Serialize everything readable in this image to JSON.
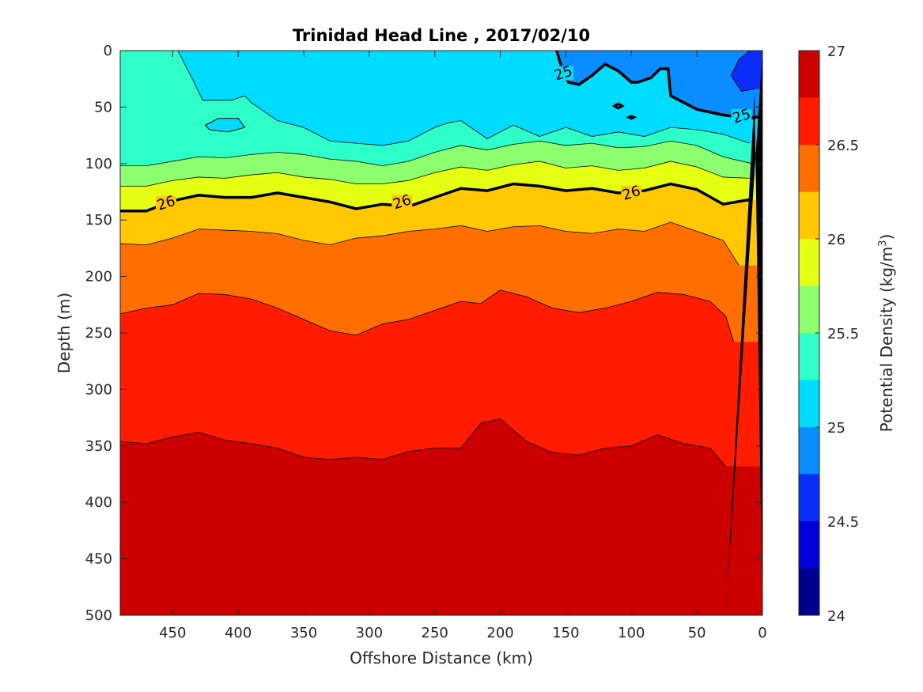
{
  "chart_data": {
    "type": "contour",
    "title": "Trinidad Head Line , 2017/02/10",
    "xlabel": "Offshore Distance (km)",
    "ylabel": "Depth (m)",
    "colorbar_label": "Potential Density (kg/m",
    "colorbar_label_superscript": "3",
    "colorbar_label_suffix": ")",
    "xlim": [
      490,
      0
    ],
    "ylim": [
      0,
      500
    ],
    "x_reversed": true,
    "y_reversed": true,
    "x_ticks": [
      450,
      400,
      350,
      300,
      250,
      200,
      150,
      100,
      50,
      0
    ],
    "y_ticks": [
      0,
      50,
      100,
      150,
      200,
      250,
      300,
      350,
      400,
      450,
      500
    ],
    "clim": [
      24,
      27
    ],
    "colorbar_ticks": [
      24,
      24.5,
      25,
      25.5,
      26,
      26.5,
      27
    ],
    "contour_levels": [
      24.25,
      24.5,
      24.75,
      25,
      25.25,
      25.5,
      25.75,
      26,
      26.25,
      26.5,
      26.75
    ],
    "level_colors": [
      "#00008f",
      "#0000d8",
      "#0c2cf8",
      "#0a8eff",
      "#00dcff",
      "#2effc8",
      "#8cff6e",
      "#e4ff12",
      "#ffc800",
      "#ff6e00",
      "#ff1c00",
      "#cc0000"
    ],
    "labeled_levels": [
      25,
      26
    ],
    "contour_labels": [
      {
        "level": 26,
        "x": 455,
        "y": 135
      },
      {
        "level": 26,
        "x": 275,
        "y": 134
      },
      {
        "level": 26,
        "x": 100,
        "y": 126
      },
      {
        "level": 25,
        "x": 152,
        "y": 20
      },
      {
        "level": 25,
        "x": 16,
        "y": 58
      }
    ],
    "contours": [
      {
        "level": 26.75,
        "x": [
          490,
          470,
          450,
          430,
          410,
          390,
          370,
          350,
          330,
          310,
          290,
          270,
          250,
          230,
          215,
          200,
          180,
          160,
          140,
          120,
          100,
          80,
          60,
          40,
          28
        ],
        "y": [
          346,
          348,
          342,
          338,
          345,
          348,
          352,
          360,
          362,
          360,
          362,
          355,
          352,
          352,
          330,
          326,
          346,
          356,
          358,
          352,
          350,
          340,
          348,
          352,
          368
        ]
      },
      {
        "level": 26.5,
        "x": [
          490,
          470,
          450,
          430,
          410,
          390,
          370,
          350,
          330,
          310,
          290,
          270,
          250,
          230,
          215,
          200,
          180,
          160,
          140,
          120,
          100,
          80,
          60,
          40,
          28,
          22
        ],
        "y": [
          233,
          228,
          225,
          215,
          216,
          220,
          228,
          238,
          248,
          252,
          242,
          238,
          230,
          222,
          224,
          212,
          218,
          228,
          232,
          228,
          222,
          214,
          216,
          222,
          235,
          258
        ]
      },
      {
        "level": 26.25,
        "x": [
          490,
          470,
          450,
          430,
          410,
          390,
          370,
          350,
          330,
          310,
          290,
          270,
          250,
          230,
          210,
          190,
          170,
          150,
          130,
          110,
          90,
          70,
          50,
          30,
          18
        ],
        "y": [
          171,
          172,
          166,
          158,
          159,
          160,
          162,
          168,
          172,
          166,
          164,
          160,
          158,
          155,
          160,
          156,
          155,
          160,
          162,
          158,
          160,
          152,
          160,
          168,
          190
        ]
      },
      {
        "level": 26,
        "x": [
          490,
          470,
          450,
          430,
          410,
          390,
          370,
          350,
          330,
          310,
          290,
          270,
          250,
          230,
          210,
          190,
          170,
          150,
          130,
          110,
          90,
          70,
          50,
          30,
          10
        ],
        "y": [
          142,
          142,
          133,
          128,
          130,
          130,
          126,
          130,
          134,
          140,
          136,
          138,
          130,
          122,
          124,
          118,
          120,
          124,
          122,
          126,
          124,
          118,
          123,
          136,
          132
        ]
      },
      {
        "level": 25.75,
        "x": [
          490,
          470,
          450,
          430,
          410,
          390,
          370,
          350,
          330,
          310,
          290,
          270,
          250,
          230,
          210,
          190,
          170,
          150,
          130,
          110,
          90,
          70,
          50,
          30,
          10
        ],
        "y": [
          120,
          120,
          115,
          112,
          113,
          110,
          108,
          112,
          114,
          118,
          118,
          115,
          108,
          103,
          106,
          101,
          98,
          104,
          102,
          106,
          104,
          98,
          103,
          112,
          113
        ]
      },
      {
        "level": 25.5,
        "x": [
          490,
          470,
          450,
          430,
          410,
          390,
          370,
          350,
          330,
          310,
          290,
          270,
          250,
          230,
          210,
          190,
          170,
          150,
          130,
          110,
          90,
          70,
          50,
          30,
          8
        ],
        "y": [
          102,
          102,
          98,
          94,
          95,
          92,
          90,
          92,
          96,
          98,
          102,
          98,
          90,
          84,
          88,
          83,
          80,
          84,
          82,
          86,
          85,
          80,
          84,
          94,
          100
        ]
      },
      {
        "level": 25.25,
        "x": [
          446,
          435,
          427,
          405,
          395,
          390,
          370,
          350,
          330,
          310,
          290,
          270,
          250,
          240,
          230,
          210,
          190,
          170,
          150,
          130,
          110,
          90,
          70,
          50,
          30,
          10
        ],
        "y": [
          0,
          25,
          44,
          44,
          40,
          46,
          62,
          68,
          80,
          82,
          84,
          80,
          68,
          64,
          62,
          78,
          66,
          76,
          68,
          76,
          72,
          76,
          68,
          70,
          74,
          82
        ]
      },
      {
        "level": 25,
        "x": [
          157,
          152,
          148,
          140,
          130,
          120,
          110,
          100,
          95,
          85,
          78,
          72,
          70,
          50,
          30,
          10,
          0
        ],
        "y": [
          0,
          20,
          28,
          30,
          22,
          12,
          18,
          28,
          28,
          24,
          16,
          16,
          40,
          52,
          57,
          60,
          58
        ]
      },
      {
        "level": 24.75,
        "x": [
          10,
          18,
          24,
          16,
          6
        ],
        "y": [
          0,
          8,
          22,
          36,
          34
        ]
      }
    ],
    "islands": [
      {
        "level": 25.25,
        "x": [
          425,
          415,
          400,
          395,
          408,
          422
        ],
        "y": [
          66,
          60,
          60,
          68,
          72,
          70
        ]
      },
      {
        "level": 25,
        "x": [
          113,
          110,
          107,
          110
        ],
        "y": [
          49,
          47,
          49,
          51
        ]
      },
      {
        "level": 25,
        "x": [
          102,
          100,
          98,
          100
        ],
        "y": [
          59,
          58,
          59,
          60
        ]
      }
    ],
    "bathymetry_fill": {
      "x": [
        0,
        28,
        6,
        0
      ],
      "y": [
        0,
        500,
        38,
        500
      ],
      "color": "#000000"
    },
    "grid": false
  }
}
